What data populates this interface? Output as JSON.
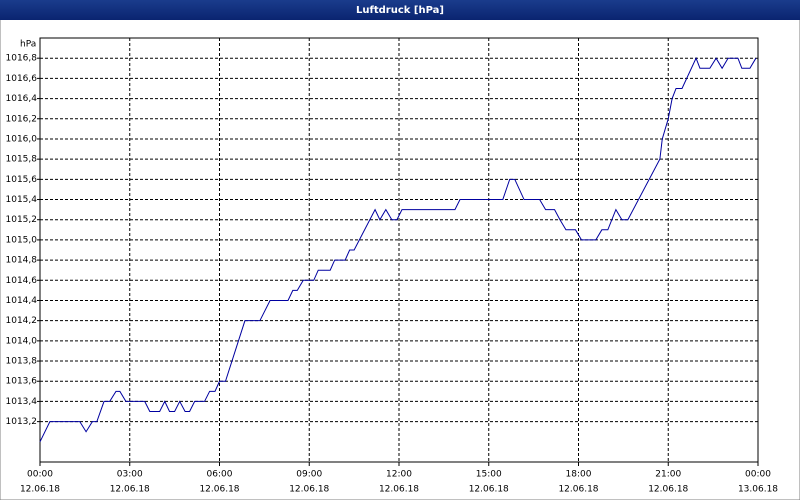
{
  "chart_data": {
    "type": "line",
    "title": "Luftdruck [hPa]",
    "y_label": "hPa",
    "x": [
      0,
      0.33,
      1.33,
      1.54,
      1.75,
      1.9,
      2.14,
      2.33,
      2.54,
      2.67,
      2.87,
      3.5,
      3.67,
      4.0,
      4.17,
      4.33,
      4.5,
      4.67,
      4.85,
      5.0,
      5.17,
      5.5,
      5.67,
      5.85,
      6.0,
      6.2,
      6.85,
      7.35,
      7.69,
      8.29,
      8.45,
      8.6,
      8.8,
      9.15,
      9.3,
      9.7,
      9.85,
      10.2,
      10.35,
      10.5,
      11.2,
      11.36,
      11.56,
      11.76,
      11.93,
      12.1,
      13.87,
      14.04,
      15.47,
      15.7,
      15.87,
      16.18,
      16.7,
      16.9,
      17.2,
      17.38,
      17.58,
      17.9,
      18.1,
      18.58,
      18.78,
      18.98,
      19.25,
      19.45,
      19.65,
      20.72,
      20.8,
      21.0,
      21.13,
      21.26,
      21.46,
      21.93,
      22.06,
      22.39,
      22.6,
      22.8,
      23.0,
      23.33,
      23.46,
      23.73,
      23.93
    ],
    "series": [
      {
        "color": "#0000a0",
        "values": [
          1013.0,
          1013.2,
          1013.2,
          1013.1,
          1013.2,
          1013.2,
          1013.4,
          1013.4,
          1013.5,
          1013.5,
          1013.4,
          1013.4,
          1013.3,
          1013.3,
          1013.4,
          1013.3,
          1013.3,
          1013.4,
          1013.3,
          1013.3,
          1013.4,
          1013.4,
          1013.5,
          1013.5,
          1013.6,
          1013.6,
          1014.2,
          1014.2,
          1014.4,
          1014.4,
          1014.5,
          1014.5,
          1014.6,
          1014.6,
          1014.7,
          1014.7,
          1014.8,
          1014.8,
          1014.9,
          1014.9,
          1015.3,
          1015.2,
          1015.3,
          1015.2,
          1015.2,
          1015.3,
          1015.3,
          1015.4,
          1015.4,
          1015.6,
          1015.6,
          1015.4,
          1015.4,
          1015.3,
          1015.3,
          1015.2,
          1015.1,
          1015.1,
          1015.0,
          1015.0,
          1015.1,
          1015.1,
          1015.3,
          1015.2,
          1015.2,
          1015.8,
          1016.0,
          1016.2,
          1016.4,
          1016.5,
          1016.5,
          1016.8,
          1016.7,
          1016.7,
          1016.8,
          1016.7,
          1016.8,
          1016.8,
          1016.7,
          1016.7,
          1016.8
        ]
      }
    ],
    "xlim": [
      0,
      24
    ],
    "xticks": [
      {
        "value": 0,
        "label": "00:00",
        "date": "12.06.18"
      },
      {
        "value": 3,
        "label": "03:00",
        "date": "12.06.18"
      },
      {
        "value": 6,
        "label": "06:00",
        "date": "12.06.18"
      },
      {
        "value": 9,
        "label": "09:00",
        "date": "12.06.18"
      },
      {
        "value": 12,
        "label": "12:00",
        "date": "12.06.18"
      },
      {
        "value": 15,
        "label": "15:00",
        "date": "12.06.18"
      },
      {
        "value": 18,
        "label": "18:00",
        "date": "12.06.18"
      },
      {
        "value": 21,
        "label": "21:00",
        "date": "12.06.18"
      },
      {
        "value": 24,
        "label": "00:00",
        "date": "13.06.18"
      }
    ],
    "ylim": [
      1012.8,
      1017.0
    ],
    "yticks": [
      {
        "value": 1013.2,
        "label": "1013,2"
      },
      {
        "value": 1013.4,
        "label": "1013,4"
      },
      {
        "value": 1013.6,
        "label": "1013,6"
      },
      {
        "value": 1013.8,
        "label": "1013,8"
      },
      {
        "value": 1014.0,
        "label": "1014,0"
      },
      {
        "value": 1014.2,
        "label": "1014,2"
      },
      {
        "value": 1014.4,
        "label": "1014,4"
      },
      {
        "value": 1014.6,
        "label": "1014,6"
      },
      {
        "value": 1014.8,
        "label": "1014,8"
      },
      {
        "value": 1015.0,
        "label": "1015,0"
      },
      {
        "value": 1015.2,
        "label": "1015,2"
      },
      {
        "value": 1015.4,
        "label": "1015,4"
      },
      {
        "value": 1015.6,
        "label": "1015,6"
      },
      {
        "value": 1015.8,
        "label": "1015,8"
      },
      {
        "value": 1016.0,
        "label": "1016,0"
      },
      {
        "value": 1016.2,
        "label": "1016,2"
      },
      {
        "value": 1016.4,
        "label": "1016,4"
      },
      {
        "value": 1016.6,
        "label": "1016,6"
      },
      {
        "value": 1016.8,
        "label": "1016,8"
      }
    ],
    "grid": true
  }
}
